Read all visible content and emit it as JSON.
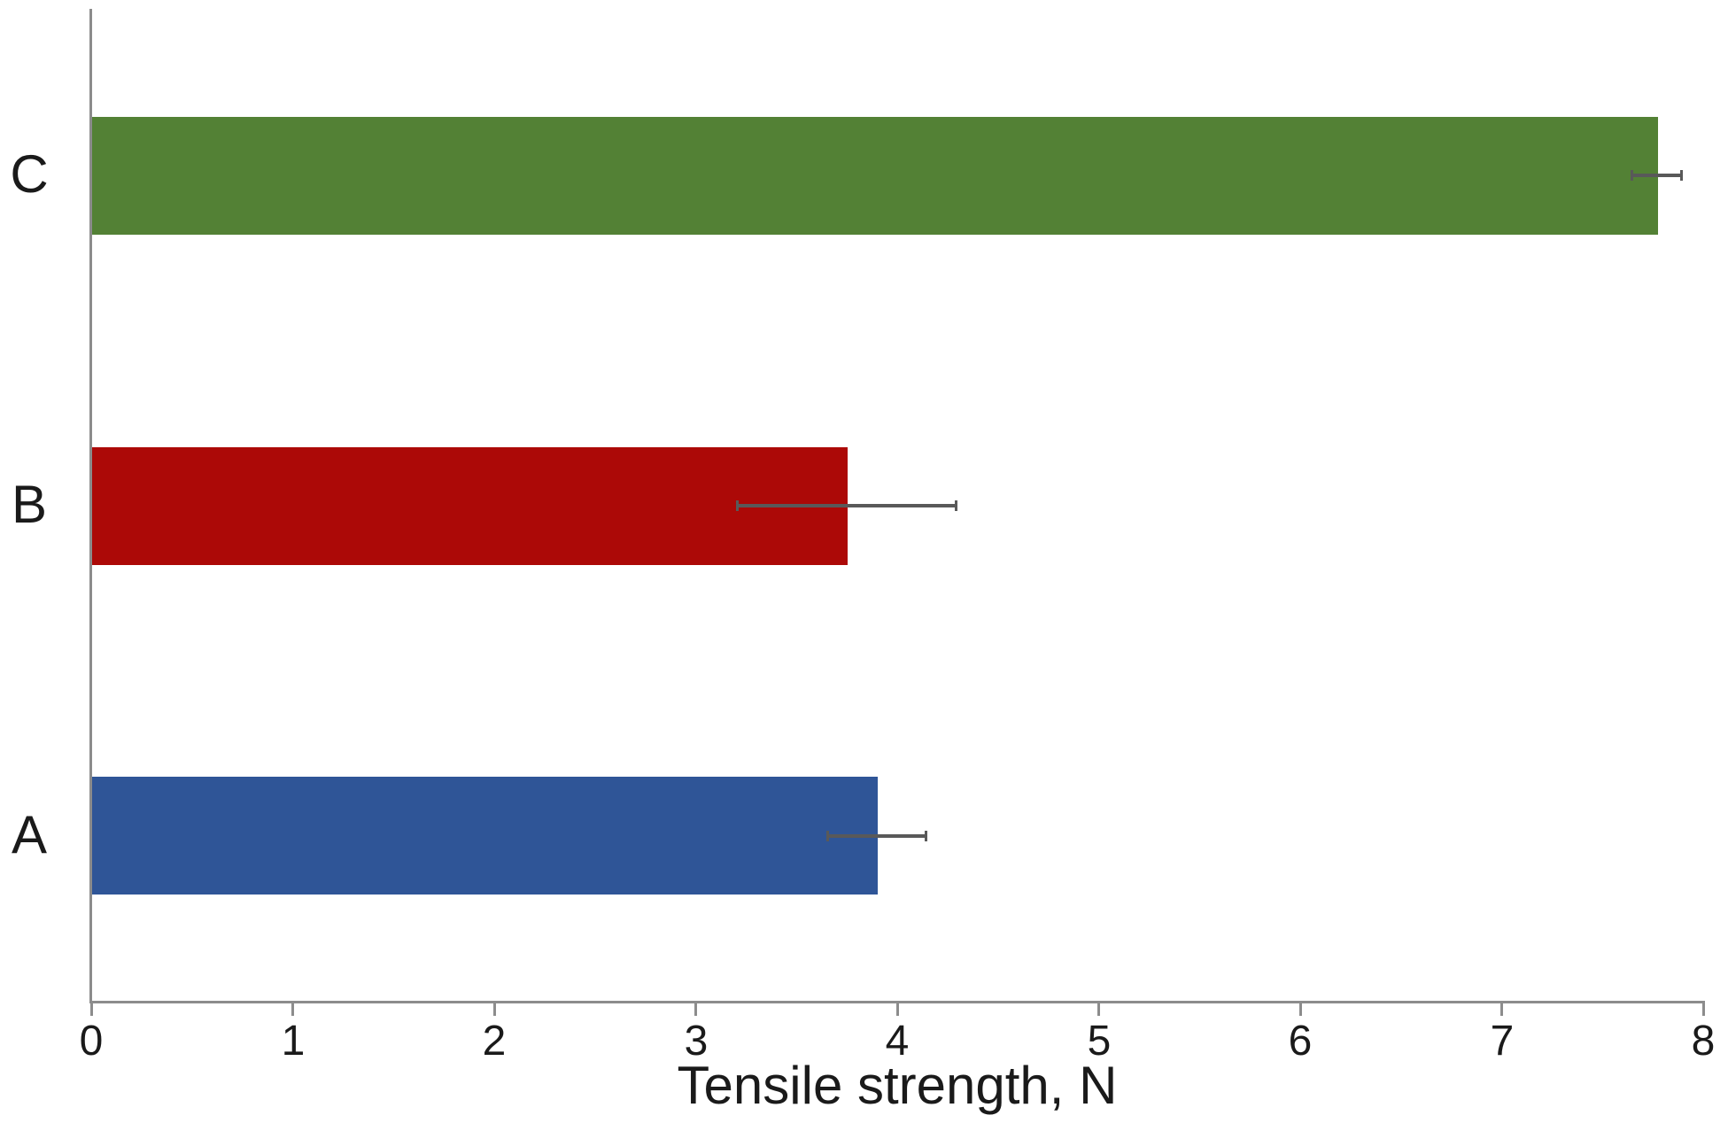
{
  "chart_data": {
    "type": "bar",
    "orientation": "horizontal",
    "xlabel": "Tensile strength, N",
    "xlim": [
      0,
      8
    ],
    "xticks": [
      0,
      1,
      2,
      3,
      4,
      5,
      6,
      7,
      8
    ],
    "xtick_labels": [
      "0",
      "1",
      "2",
      "3",
      "4",
      "5",
      "6",
      "7",
      "8"
    ],
    "grid": false,
    "legend": false,
    "rows_top_to_bottom": [
      {
        "category": "C",
        "value": 7.77,
        "error": 0.13,
        "color": "#538135"
      },
      {
        "category": "B",
        "value": 3.75,
        "error": 0.55,
        "color": "#AC0907"
      },
      {
        "category": "A",
        "value": 3.9,
        "error": 0.25,
        "color": "#2F5597"
      }
    ],
    "error_bar_color": "#595959",
    "axis_color": "#8C8C8C",
    "text_color": "#1A1A1A"
  }
}
